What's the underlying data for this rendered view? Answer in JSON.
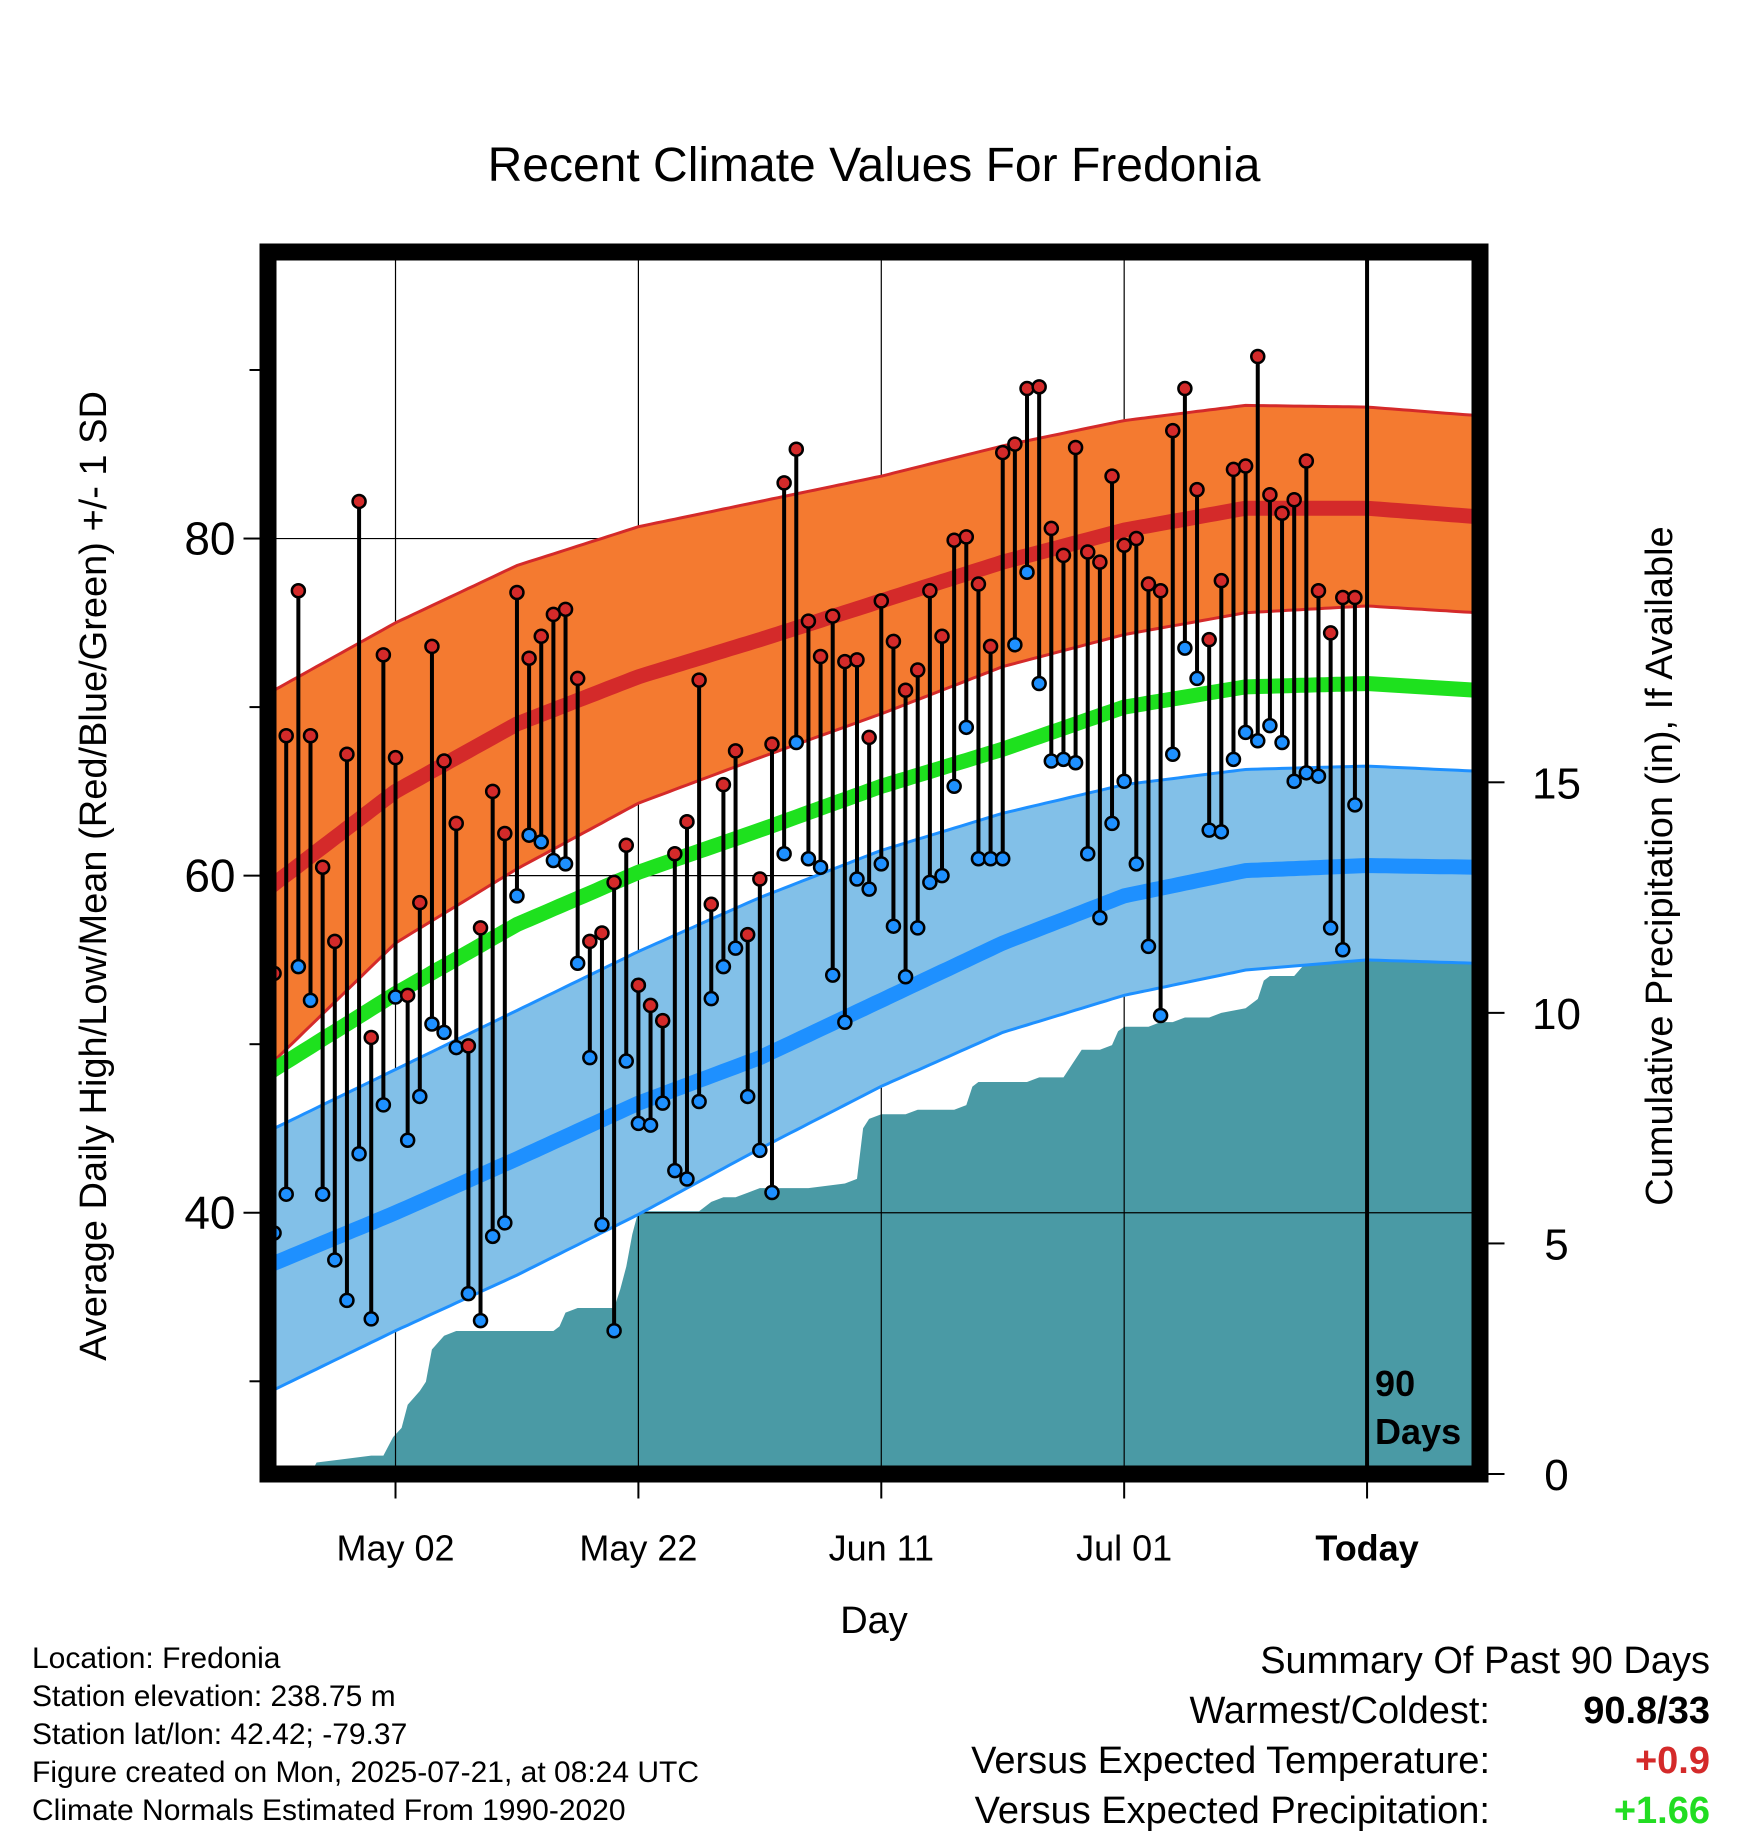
{
  "chart_data": {
    "type": "line",
    "title": "Recent Climate Values For Fredonia",
    "xlabel": "Day",
    "ylabel_left": "Average Daily High/Low/Mean (Red/Blue/Green) +/- 1 SD",
    "ylabel_right": "Cumulative Precipitation (in), If Available",
    "x_start_date": "2025-04-22",
    "x_ticks": [
      {
        "day": 10,
        "label": "May 02"
      },
      {
        "day": 30,
        "label": "May 22"
      },
      {
        "day": 50,
        "label": "Jun 11"
      },
      {
        "day": 70,
        "label": "Jul 01"
      },
      {
        "day": 90,
        "label": "Today"
      }
    ],
    "xlim": [
      -0.5,
      99.3
    ],
    "ylim_temp": [
      24.5,
      97
    ],
    "ylim_precip": [
      0,
      26.5
    ],
    "y_ticks_temp": [
      40,
      60,
      80
    ],
    "y_minor_temp": [
      30,
      50,
      70,
      90
    ],
    "y_ticks_precip": [
      0,
      5,
      10,
      15
    ],
    "grid": true,
    "today_marker": {
      "day": 90,
      "label_line1": "90",
      "label_line2": "Days"
    },
    "colors": {
      "high_band": "#f47a30",
      "high_mean": "#d42a2a",
      "high_edge": "#d42a2a",
      "low_band": "#82c0e8",
      "low_mean": "#1e90ff",
      "low_edge": "#1e90ff",
      "mean_line": "#1ee11e",
      "precip_fill": "#4a9aa5",
      "high_point": "#d42a2a",
      "low_point": "#1e90ff"
    },
    "normals": {
      "days": [
        0,
        10,
        20,
        30,
        40,
        50,
        60,
        70,
        80,
        90,
        99
      ],
      "high_mean": [
        59.5,
        65.0,
        69.0,
        71.8,
        74.0,
        76.3,
        78.6,
        80.5,
        81.8,
        81.8,
        81.3
      ],
      "high_upper": [
        71.0,
        75.0,
        78.4,
        80.7,
        82.2,
        83.7,
        85.5,
        87.0,
        87.9,
        87.8,
        87.3
      ],
      "high_lower": [
        49.0,
        56.0,
        60.4,
        64.3,
        67.0,
        69.6,
        72.4,
        74.3,
        75.6,
        76.0,
        75.6
      ],
      "mean_line": [
        48.5,
        53.0,
        57.1,
        60.2,
        62.7,
        65.3,
        67.5,
        70.0,
        71.2,
        71.4,
        71.0
      ],
      "low_mean": [
        37.0,
        40.0,
        43.2,
        46.5,
        49.2,
        52.6,
        56.0,
        58.8,
        60.3,
        60.6,
        60.5
      ],
      "low_upper": [
        45.0,
        48.5,
        52.0,
        55.5,
        58.7,
        61.5,
        63.7,
        65.4,
        66.3,
        66.5,
        66.2
      ],
      "low_lower": [
        29.5,
        33.0,
        36.3,
        39.9,
        43.8,
        47.5,
        50.7,
        52.9,
        54.4,
        55.0,
        54.8
      ]
    },
    "highs": [
      54.2,
      68.3,
      76.9,
      68.3,
      60.5,
      56.1,
      67.2,
      82.2,
      50.4,
      73.1,
      67.0,
      52.9,
      58.4,
      73.6,
      66.8,
      63.1,
      49.9,
      56.9,
      65.0,
      62.5,
      76.8,
      72.9,
      74.2,
      75.5,
      75.8,
      71.7,
      56.1,
      56.6,
      59.6,
      61.8,
      53.5,
      52.3,
      51.4,
      61.3,
      63.2,
      71.6,
      58.3,
      65.4,
      67.4,
      56.5,
      59.8,
      67.8,
      83.3,
      85.3,
      75.1,
      73.0,
      75.4,
      72.7,
      72.8,
      68.2,
      76.3,
      73.9,
      71.0,
      72.2,
      76.9,
      74.2,
      79.9,
      80.1,
      77.3,
      73.6,
      85.1,
      85.6,
      88.9,
      89.0,
      80.6,
      79.0,
      85.4,
      79.2,
      78.6,
      83.7,
      79.6,
      80.0,
      77.3,
      76.9,
      86.4,
      88.9,
      82.9,
      74.0,
      77.5,
      84.1,
      84.3,
      90.8,
      82.6,
      81.5,
      82.3,
      84.6,
      76.9,
      74.4,
      76.5,
      76.5
    ],
    "lows": [
      38.8,
      41.1,
      54.6,
      52.6,
      41.1,
      37.2,
      34.8,
      43.5,
      33.7,
      46.4,
      52.8,
      44.3,
      46.9,
      51.2,
      50.7,
      49.8,
      35.2,
      33.6,
      38.6,
      39.4,
      58.8,
      62.4,
      62.0,
      60.9,
      60.7,
      54.8,
      49.2,
      39.3,
      33.0,
      49.0,
      45.3,
      45.2,
      46.5,
      42.5,
      42.0,
      46.6,
      52.7,
      54.6,
      55.7,
      46.9,
      43.7,
      41.2,
      61.3,
      67.9,
      61.0,
      60.5,
      54.1,
      51.3,
      59.8,
      59.2,
      60.7,
      57.0,
      54.0,
      56.9,
      59.6,
      60.0,
      65.3,
      68.8,
      61.0,
      61.0,
      61.0,
      73.7,
      78.0,
      71.4,
      66.8,
      66.9,
      66.7,
      61.3,
      57.5,
      63.1,
      65.6,
      60.7,
      55.8,
      51.7,
      67.2,
      73.5,
      71.7,
      62.7,
      62.6,
      66.9,
      68.5,
      68.0,
      68.9,
      67.9,
      65.6,
      66.1,
      65.9,
      56.9,
      55.6,
      64.2
    ],
    "precip_cumulative": [
      [
        0,
        0.0
      ],
      [
        3,
        0.0
      ],
      [
        3.5,
        0.25
      ],
      [
        5,
        0.3
      ],
      [
        8,
        0.4
      ],
      [
        9,
        0.4
      ],
      [
        9.8,
        0.8
      ],
      [
        10.5,
        1.0
      ],
      [
        11,
        1.5
      ],
      [
        12,
        1.8
      ],
      [
        12.5,
        2.0
      ],
      [
        13,
        2.7
      ],
      [
        14,
        3.0
      ],
      [
        15,
        3.1
      ],
      [
        20,
        3.1
      ],
      [
        23,
        3.1
      ],
      [
        23.5,
        3.2
      ],
      [
        24,
        3.5
      ],
      [
        25,
        3.6
      ],
      [
        27,
        3.6
      ],
      [
        28,
        3.6
      ],
      [
        28.5,
        4.0
      ],
      [
        29,
        4.5
      ],
      [
        29.5,
        5.2
      ],
      [
        30,
        5.7
      ],
      [
        35,
        5.7
      ],
      [
        36,
        5.9
      ],
      [
        37,
        6.0
      ],
      [
        38,
        6.0
      ],
      [
        39,
        6.1
      ],
      [
        40,
        6.2
      ],
      [
        44,
        6.2
      ],
      [
        47,
        6.3
      ],
      [
        48,
        6.4
      ],
      [
        48.5,
        7.5
      ],
      [
        49,
        7.7
      ],
      [
        50,
        7.8
      ],
      [
        52,
        7.8
      ],
      [
        53,
        7.9
      ],
      [
        56,
        7.9
      ],
      [
        57,
        8.0
      ],
      [
        57.5,
        8.4
      ],
      [
        58,
        8.5
      ],
      [
        62,
        8.5
      ],
      [
        63,
        8.6
      ],
      [
        65,
        8.6
      ],
      [
        66,
        9.0
      ],
      [
        66.5,
        9.2
      ],
      [
        68,
        9.2
      ],
      [
        69,
        9.3
      ],
      [
        69.5,
        9.6
      ],
      [
        70,
        9.7
      ],
      [
        72,
        9.7
      ],
      [
        73,
        9.8
      ],
      [
        74,
        9.8
      ],
      [
        75,
        9.9
      ],
      [
        77,
        9.9
      ],
      [
        78,
        10.0
      ],
      [
        80,
        10.1
      ],
      [
        81,
        10.3
      ],
      [
        81.5,
        10.7
      ],
      [
        82,
        10.8
      ],
      [
        84,
        10.8
      ],
      [
        85,
        11.1
      ],
      [
        86,
        11.2
      ],
      [
        87,
        11.3
      ],
      [
        88,
        11.4
      ],
      [
        89,
        11.6
      ],
      [
        90,
        11.8
      ],
      [
        99.3,
        11.8
      ]
    ]
  },
  "footer": {
    "location": "Location: Fredonia",
    "elevation": "Station elevation: 238.75 m",
    "latlon": "Station lat/lon: 42.42; -79.37",
    "created": "Figure created on Mon, 2025-07-21, at 08:24 UTC",
    "normals_note": "Climate Normals Estimated From 1990-2020"
  },
  "summary": {
    "heading": "Summary Of Past 90 Days",
    "warmest_coldest_label": "Warmest/Coldest:",
    "warmest_coldest_value": "90.8/33",
    "temp_label": "Versus Expected Temperature:",
    "temp_value": "+0.9",
    "temp_color": "#d42a2a",
    "precip_label": "Versus Expected Precipitation:",
    "precip_value": "+1.66",
    "precip_color": "#22dd22"
  }
}
